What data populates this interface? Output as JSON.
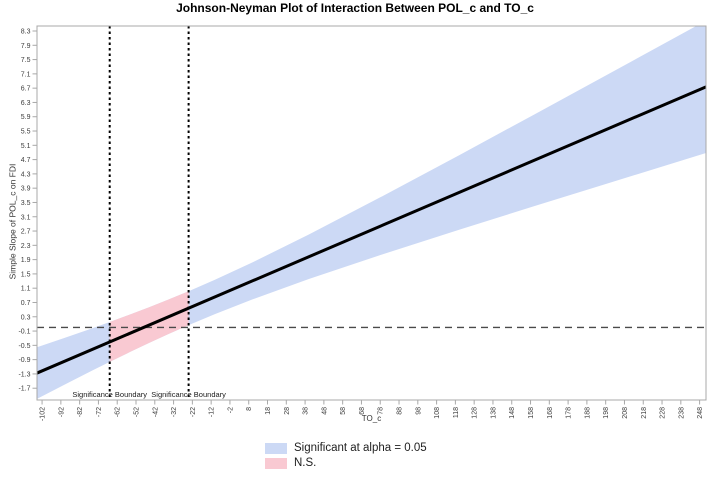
{
  "chart_data": {
    "type": "line",
    "title": "Johnson-Neyman Plot of Interaction Between POL_c and TO_c",
    "xlabel": "TO_c",
    "ylabel": "Simple Slope of POL_c on FDI",
    "x_range": [
      -104.7,
      251.4
    ],
    "y_range": [
      -2.03,
      8.44
    ],
    "x_ticks": [
      -102,
      -92,
      -82,
      -72,
      -62,
      -52,
      -42,
      -32,
      -22,
      -12,
      -2,
      8,
      18,
      28,
      38,
      48,
      58,
      68,
      78,
      88,
      98,
      108,
      118,
      128,
      138,
      148,
      158,
      168,
      178,
      188,
      198,
      208,
      218,
      228,
      238,
      248
    ],
    "y_ticks": [
      8.3,
      7.9,
      7.5,
      7.1,
      6.7,
      6.3,
      5.9,
      5.5,
      5.1,
      4.7,
      4.3,
      3.9,
      3.5,
      3.1,
      2.7,
      2.3,
      1.9,
      1.5,
      1.1,
      0.7,
      0.3,
      -0.1,
      -0.5,
      -0.9,
      -1.3,
      -1.7
    ],
    "grid": false,
    "zero_line_y": 0,
    "significance_boundaries": [
      -66,
      -24
    ],
    "boundary_label": "Significance Boundary",
    "slope_line": {
      "x": [
        -104.7,
        251.4
      ],
      "y": [
        -1.276,
        6.737
      ]
    },
    "confidence_band": {
      "x": [
        -104.7,
        -90,
        -75,
        -66,
        -55,
        -45,
        -35,
        -24,
        -10,
        10,
        40,
        80,
        120,
        160,
        200,
        251.4
      ],
      "upper": [
        -0.552,
        -0.291,
        -0.017,
        0.152,
        0.366,
        0.567,
        0.775,
        1.015,
        1.336,
        1.823,
        2.603,
        3.698,
        4.823,
        5.963,
        7.11,
        8.59
      ],
      "lower": [
        -1.999,
        -1.599,
        -1.198,
        -0.962,
        -0.681,
        -0.432,
        -0.19,
        0.065,
        0.374,
        0.787,
        1.357,
        2.062,
        2.737,
        3.397,
        4.05,
        4.883
      ]
    },
    "ns_band": {
      "x": [
        -66,
        -55,
        -45,
        -35,
        -24
      ],
      "upper": [
        0.152,
        0.366,
        0.567,
        0.775,
        1.015
      ],
      "lower": [
        -0.962,
        -0.681,
        -0.432,
        -0.19,
        0.065
      ]
    },
    "legend": [
      {
        "label": "Significant at alpha = 0.05",
        "color": "#ccd9f5"
      },
      {
        "label": "N.S.",
        "color": "#f9c9d2"
      }
    ],
    "legend_position": "bottom-center",
    "colors": {
      "significant_band": "#ccd9f5",
      "ns_band": "#f9c9d2",
      "slope_line": "#000000",
      "zero_line": "#4a4a4a",
      "boundary_line": "#000000",
      "frame": "#a8a8a8",
      "tick": "#a8a8a8",
      "tick_label": "#3d3d3d",
      "boundary_label_color": "#1a1a1a"
    }
  }
}
